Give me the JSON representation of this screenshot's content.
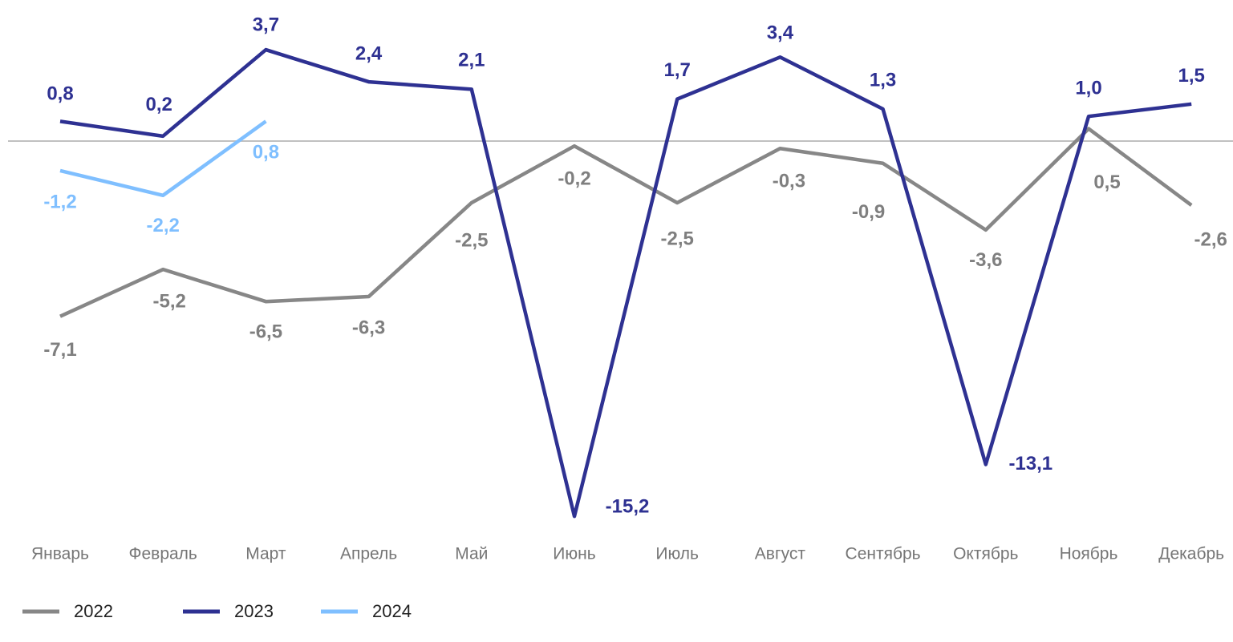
{
  "chart_data": {
    "type": "line",
    "categories": [
      "Январь",
      "Февраль",
      "Март",
      "Апрель",
      "Май",
      "Июнь",
      "Июль",
      "Август",
      "Сентябрь",
      "Октябрь",
      "Ноябрь",
      "Декабрь"
    ],
    "series": [
      {
        "name": "2022",
        "color": "#878787",
        "values": [
          -7.1,
          -5.2,
          -6.5,
          -6.3,
          -2.5,
          -0.2,
          -2.5,
          -0.3,
          -0.9,
          -3.6,
          0.5,
          -2.6
        ],
        "value_labels": [
          "-7,1",
          "-5,2",
          "-6,5",
          "-6,3",
          "-2,5",
          "-0,2",
          "-2,5",
          "-0,3",
          "-0,9",
          "-3,6",
          "0,5",
          "-2,6"
        ]
      },
      {
        "name": "2023",
        "color": "#2e3192",
        "values": [
          0.8,
          0.2,
          3.7,
          2.4,
          2.1,
          -15.2,
          1.7,
          3.4,
          1.3,
          -13.1,
          1.0,
          1.5
        ],
        "value_labels": [
          "0,8",
          "0,2",
          "3,7",
          "2,4",
          "2,1",
          "-15,2",
          "1,7",
          "3,4",
          "1,3",
          "-13,1",
          "1,0",
          "1,5"
        ]
      },
      {
        "name": "2024",
        "color": "#7fbfff",
        "values": [
          -1.2,
          -2.2,
          0.8,
          null,
          null,
          null,
          null,
          null,
          null,
          null,
          null,
          null
        ],
        "value_labels": [
          "-1,2",
          "-2,2",
          "0,8",
          null,
          null,
          null,
          null,
          null,
          null,
          null,
          null,
          null
        ]
      }
    ],
    "ylim": [
      -16,
      4.5
    ],
    "legend": "bottom-left"
  }
}
